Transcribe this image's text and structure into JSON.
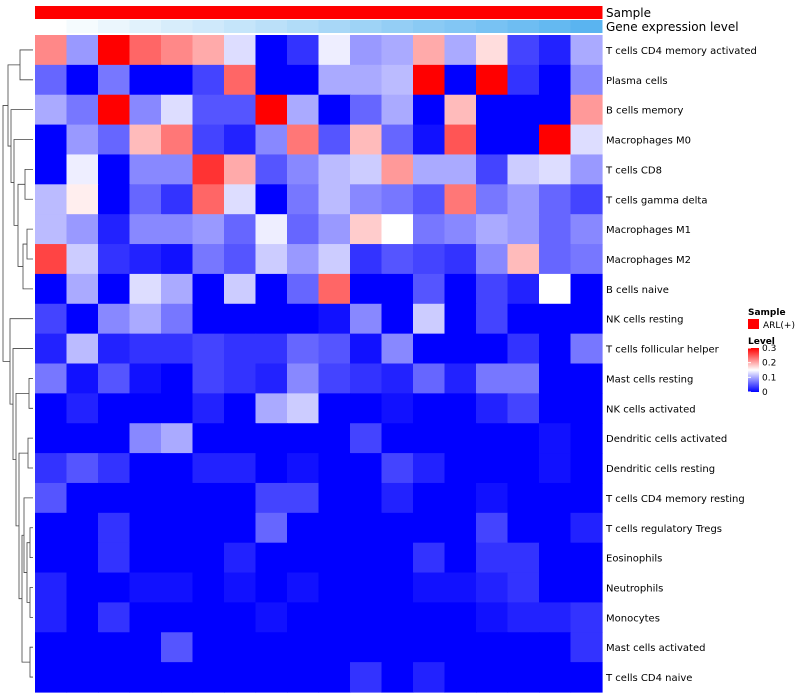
{
  "chart_data": {
    "type": "heatmap",
    "title": "",
    "annotation_rows": [
      {
        "name": "Sample",
        "label": "Sample"
      },
      {
        "name": "Gene expression level",
        "label": "Gene expression level"
      }
    ],
    "sample_values": [
      "ARL(+)",
      "ARL(+)",
      "ARL(+)",
      "ARL(+)",
      "ARL(+)",
      "ARL(+)",
      "ARL(+)",
      "ARL(+)",
      "ARL(+)",
      "ARL(+)",
      "ARL(+)",
      "ARL(+)",
      "ARL(+)",
      "ARL(+)",
      "ARL(+)",
      "ARL(+)",
      "ARL(+)",
      "ARL(+)"
    ],
    "gene_expression_level": [
      0.0,
      0.06,
      0.12,
      0.18,
      0.24,
      0.29,
      0.35,
      0.41,
      0.47,
      0.53,
      0.59,
      0.65,
      0.71,
      0.76,
      0.82,
      0.88,
      0.94,
      1.0
    ],
    "rows": [
      "T cells CD4 memory activated",
      "Plasma cells",
      "B cells memory",
      "Macrophages M0",
      "T cells CD8",
      "T cells gamma delta",
      "Macrophages M1",
      "Macrophages M2",
      "B cells naive",
      "NK cells resting",
      "T cells follicular helper",
      "Mast cells resting",
      "NK cells activated",
      "Dendritic cells activated",
      "Dendritic cells resting",
      "T cells CD4 memory resting",
      "T cells regulatory  Tregs",
      "Eosinophils",
      "Neutrophils",
      "Monocytes",
      "Mast cells activated",
      "T cells CD4 naive"
    ],
    "values": [
      [
        0.22,
        0.09,
        0.3,
        0.24,
        0.22,
        0.2,
        0.13,
        0.0,
        0.03,
        0.14,
        0.09,
        0.1,
        0.2,
        0.1,
        0.17,
        0.04,
        0.02,
        0.1
      ],
      [
        0.06,
        0.0,
        0.07,
        0.0,
        0.0,
        0.04,
        0.24,
        0.0,
        0.0,
        0.1,
        0.1,
        0.11,
        0.3,
        0.0,
        0.3,
        0.03,
        0.0,
        0.08
      ],
      [
        0.1,
        0.07,
        0.3,
        0.08,
        0.13,
        0.05,
        0.05,
        0.3,
        0.1,
        0.0,
        0.06,
        0.1,
        0.0,
        0.19,
        0.0,
        0.0,
        0.0,
        0.21
      ],
      [
        0.0,
        0.09,
        0.06,
        0.19,
        0.23,
        0.04,
        0.02,
        0.08,
        0.23,
        0.05,
        0.19,
        0.06,
        0.01,
        0.25,
        0.0,
        0.0,
        0.3,
        0.13
      ],
      [
        0.0,
        0.14,
        0.0,
        0.08,
        0.08,
        0.27,
        0.2,
        0.05,
        0.08,
        0.11,
        0.12,
        0.21,
        0.1,
        0.1,
        0.04,
        0.12,
        0.13,
        0.09
      ],
      [
        0.11,
        0.16,
        0.0,
        0.06,
        0.03,
        0.24,
        0.13,
        0.0,
        0.07,
        0.11,
        0.08,
        0.07,
        0.05,
        0.23,
        0.07,
        0.09,
        0.06,
        0.04
      ],
      [
        0.11,
        0.09,
        0.02,
        0.08,
        0.08,
        0.09,
        0.06,
        0.14,
        0.06,
        0.09,
        0.18,
        0.15,
        0.07,
        0.08,
        0.1,
        0.09,
        0.06,
        0.08
      ],
      [
        0.26,
        0.12,
        0.03,
        0.02,
        0.01,
        0.07,
        0.05,
        0.12,
        0.09,
        0.12,
        0.03,
        0.05,
        0.04,
        0.03,
        0.08,
        0.19,
        0.06,
        0.07
      ],
      [
        0.0,
        0.1,
        0.0,
        0.13,
        0.1,
        0.0,
        0.12,
        0.0,
        0.06,
        0.24,
        0.0,
        0.0,
        0.05,
        0.0,
        0.04,
        0.02,
        0.15,
        0.0
      ],
      [
        0.04,
        0.0,
        0.08,
        0.1,
        0.07,
        0.0,
        0.0,
        0.0,
        0.0,
        0.01,
        0.08,
        0.0,
        0.12,
        0.0,
        0.04,
        0.0,
        0.0,
        0.0
      ],
      [
        0.02,
        0.11,
        0.02,
        0.03,
        0.03,
        0.04,
        0.03,
        0.03,
        0.06,
        0.05,
        0.01,
        0.08,
        0.0,
        0.0,
        0.0,
        0.03,
        0.0,
        0.07
      ],
      [
        0.07,
        0.01,
        0.05,
        0.01,
        0.0,
        0.04,
        0.03,
        0.02,
        0.08,
        0.04,
        0.03,
        0.02,
        0.06,
        0.02,
        0.07,
        0.07,
        0.0,
        0.0
      ],
      [
        0.0,
        0.02,
        0.0,
        0.0,
        0.0,
        0.02,
        0.0,
        0.1,
        0.12,
        0.0,
        0.0,
        0.01,
        0.0,
        0.0,
        0.02,
        0.04,
        0.0,
        0.0
      ],
      [
        0.0,
        0.0,
        0.0,
        0.08,
        0.1,
        0.0,
        0.0,
        0.0,
        0.0,
        0.0,
        0.04,
        0.0,
        0.0,
        0.0,
        0.0,
        0.0,
        0.01,
        0.0
      ],
      [
        0.03,
        0.05,
        0.03,
        0.0,
        0.0,
        0.02,
        0.02,
        0.0,
        0.01,
        0.0,
        0.0,
        0.04,
        0.02,
        0.0,
        0.0,
        0.0,
        0.01,
        0.0
      ],
      [
        0.05,
        0.0,
        0.0,
        0.0,
        0.0,
        0.0,
        0.0,
        0.04,
        0.04,
        0.0,
        0.0,
        0.02,
        0.0,
        0.0,
        0.01,
        0.0,
        0.0,
        0.0
      ],
      [
        0.0,
        0.0,
        0.03,
        0.0,
        0.0,
        0.0,
        0.0,
        0.06,
        0.0,
        0.0,
        0.0,
        0.0,
        0.0,
        0.0,
        0.04,
        0.0,
        0.0,
        0.02
      ],
      [
        0.0,
        0.0,
        0.03,
        0.0,
        0.0,
        0.0,
        0.02,
        0.0,
        0.0,
        0.0,
        0.0,
        0.0,
        0.03,
        0.0,
        0.03,
        0.03,
        0.0,
        0.0
      ],
      [
        0.02,
        0.0,
        0.0,
        0.01,
        0.01,
        0.0,
        0.01,
        0.0,
        0.01,
        0.0,
        0.0,
        0.0,
        0.01,
        0.01,
        0.02,
        0.03,
        0.0,
        0.0
      ],
      [
        0.02,
        0.0,
        0.03,
        0.0,
        0.0,
        0.0,
        0.0,
        0.01,
        0.0,
        0.0,
        0.0,
        0.0,
        0.0,
        0.0,
        0.01,
        0.02,
        0.02,
        0.03
      ],
      [
        0.0,
        0.0,
        0.0,
        0.0,
        0.05,
        0.0,
        0.0,
        0.0,
        0.0,
        0.0,
        0.0,
        0.0,
        0.0,
        0.0,
        0.0,
        0.0,
        0.0,
        0.03
      ],
      [
        0.0,
        0.0,
        0.0,
        0.0,
        0.0,
        0.0,
        0.0,
        0.0,
        0.0,
        0.0,
        0.03,
        0.0,
        0.02,
        0.0,
        0.0,
        0.0,
        0.0,
        0.0
      ]
    ],
    "legend": {
      "sample_title": "Sample",
      "sample_entry": "ARL(+)",
      "sample_color": "#ff0000",
      "level_title": "Level",
      "level_ticks": [
        "0.3",
        "0.2",
        "0.1",
        "0"
      ],
      "level_tick_values": [
        0.3,
        0.2,
        0.1,
        0.0
      ],
      "range": [
        0,
        0.3
      ]
    },
    "colors": {
      "low": "#0000ff",
      "mid": "#ffffff",
      "high": "#ff0000",
      "expression_low": "#ffffff",
      "expression_high": "#5ab4f0"
    }
  }
}
